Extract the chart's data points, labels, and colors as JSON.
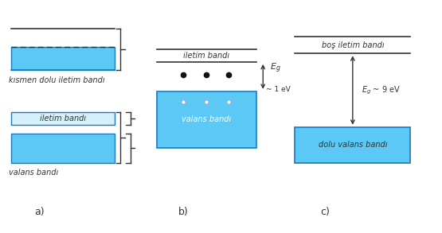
{
  "bg_color": "#ffffff",
  "band_fill": "#5bc8f5",
  "band_edge": "#1a7abf",
  "panel_labels": [
    "a)",
    "b)",
    "c)"
  ],
  "panel_label_fontsize": 9,
  "label_fontsize": 7.0,
  "text_color": "#333333",
  "dot_dark": "#111111",
  "dot_light": "#ffffff"
}
